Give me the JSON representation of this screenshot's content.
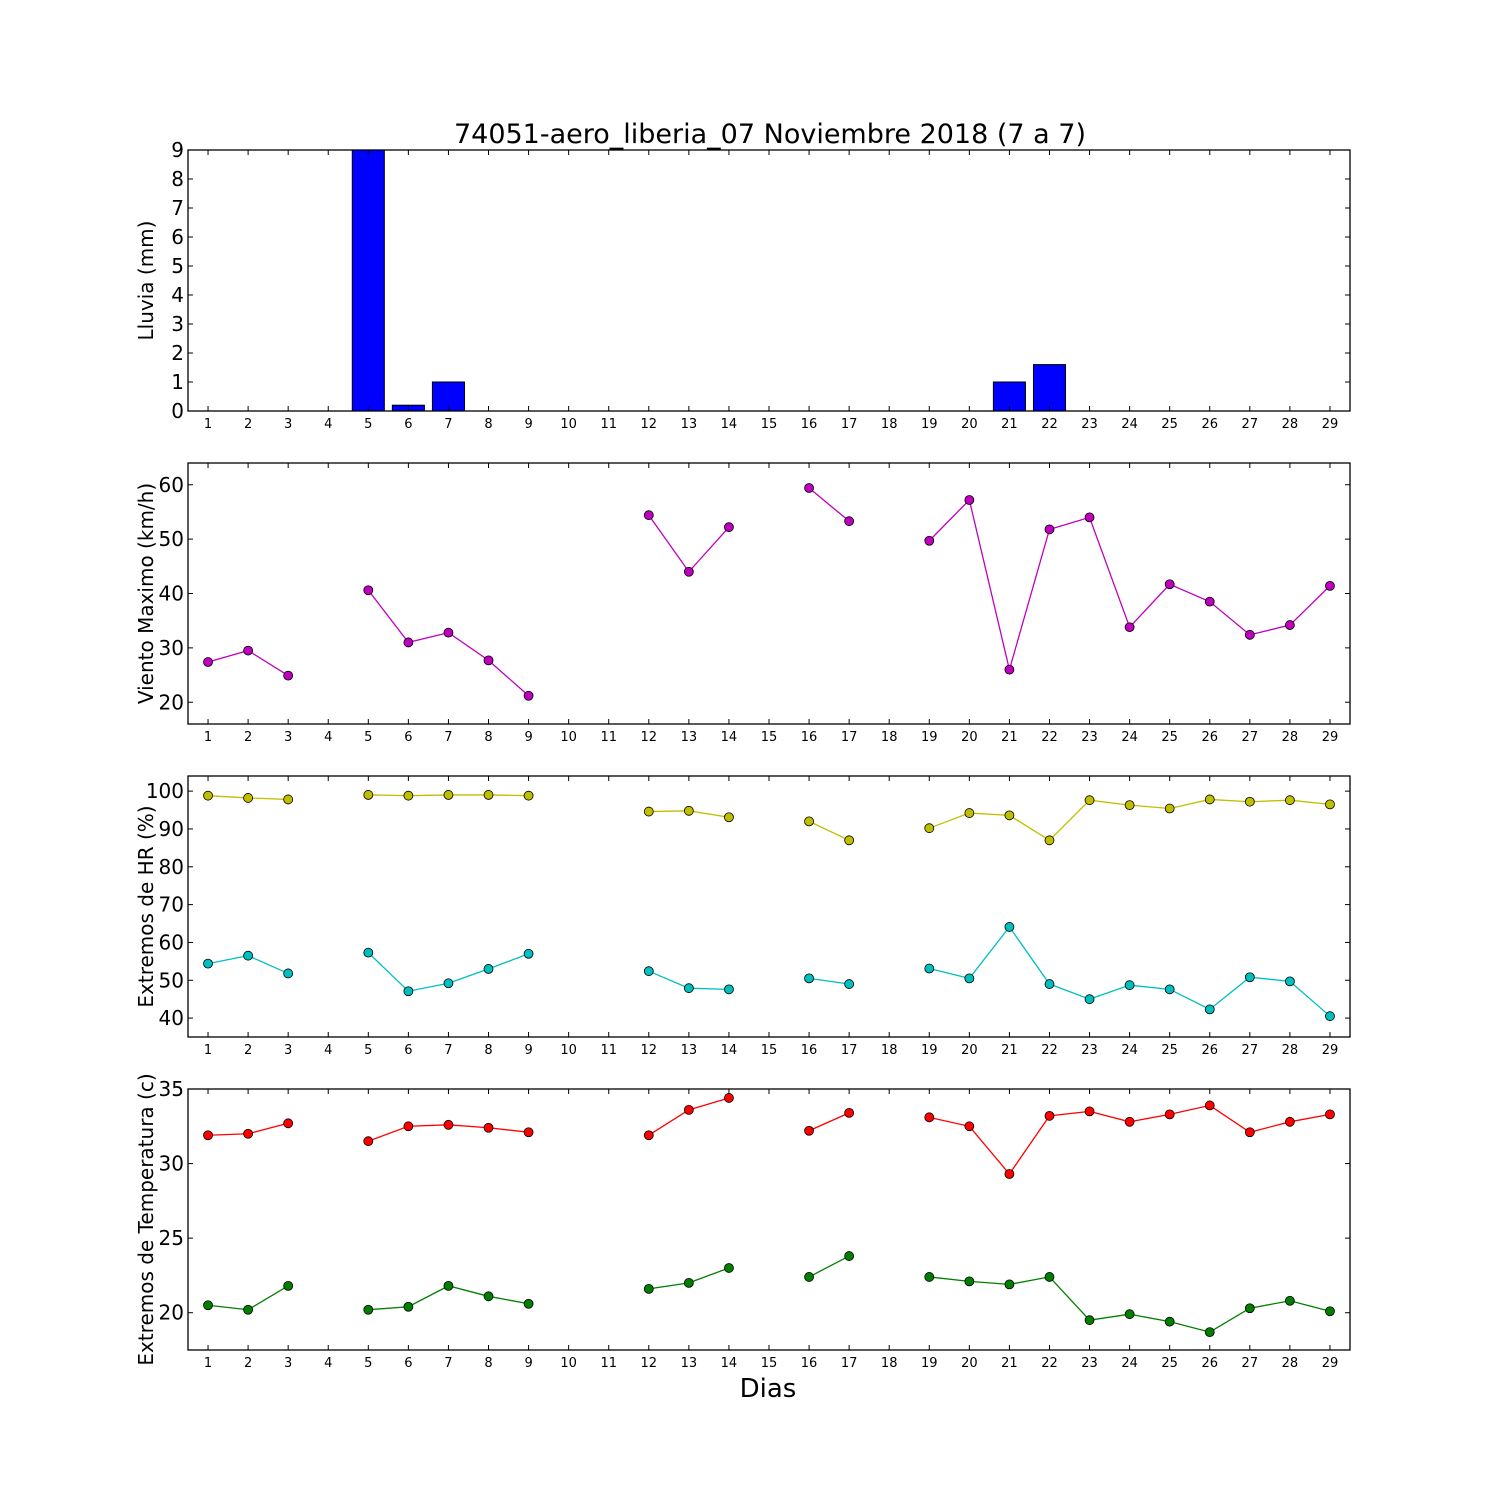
{
  "title": "74051-aero_liberia_07 Noviembre 2018  (7 a 7)",
  "xlabel": "Dias",
  "chart_data": [
    {
      "type": "bar",
      "ylabel": "Lluvia (mm)",
      "x": [
        1,
        2,
        3,
        4,
        5,
        6,
        7,
        8,
        9,
        10,
        11,
        12,
        13,
        14,
        15,
        16,
        17,
        18,
        19,
        20,
        21,
        22,
        23,
        24,
        25,
        26,
        27,
        28,
        29
      ],
      "ylim": [
        0,
        9
      ],
      "yticks": [
        0,
        1,
        2,
        3,
        4,
        5,
        6,
        7,
        8,
        9
      ],
      "series": [
        {
          "color": "#0000ff",
          "values": [
            0,
            0,
            0,
            0,
            9.0,
            0.2,
            1.0,
            0,
            0,
            0,
            0,
            0,
            0,
            0,
            0,
            0,
            0,
            0,
            0,
            0,
            1.0,
            1.6,
            0,
            0,
            0,
            0,
            0,
            0,
            0
          ]
        }
      ]
    },
    {
      "type": "line",
      "ylabel": "Viento Maximo (km/h)",
      "x": [
        1,
        2,
        3,
        4,
        5,
        6,
        7,
        8,
        9,
        10,
        11,
        12,
        13,
        14,
        15,
        16,
        17,
        18,
        19,
        20,
        21,
        22,
        23,
        24,
        25,
        26,
        27,
        28,
        29
      ],
      "ylim": [
        16,
        64
      ],
      "yticks": [
        20,
        30,
        40,
        50,
        60
      ],
      "series": [
        {
          "color": "#bf00bf",
          "values": [
            27.4,
            29.5,
            24.9,
            null,
            40.6,
            31.0,
            32.8,
            27.7,
            21.2,
            null,
            null,
            54.4,
            44.0,
            52.2,
            null,
            59.4,
            53.3,
            null,
            49.7,
            57.2,
            26.0,
            51.8,
            54.0,
            33.8,
            41.7,
            38.5,
            32.4,
            34.2,
            41.4
          ]
        }
      ]
    },
    {
      "type": "line",
      "ylabel": "Extremos de HR (%)",
      "x": [
        1,
        2,
        3,
        4,
        5,
        6,
        7,
        8,
        9,
        10,
        11,
        12,
        13,
        14,
        15,
        16,
        17,
        18,
        19,
        20,
        21,
        22,
        23,
        24,
        25,
        26,
        27,
        28,
        29
      ],
      "ylim": [
        35,
        104
      ],
      "yticks": [
        40,
        50,
        60,
        70,
        80,
        90,
        100
      ],
      "series": [
        {
          "color": "#bfbf00",
          "values": [
            98.8,
            98.2,
            97.8,
            null,
            99.0,
            98.8,
            99.0,
            99.0,
            98.8,
            null,
            null,
            94.6,
            94.8,
            93.1,
            null,
            92.0,
            87.0,
            null,
            90.2,
            94.2,
            93.6,
            87.0,
            97.6,
            96.3,
            95.4,
            97.8,
            97.2,
            97.6,
            96.5
          ]
        },
        {
          "color": "#00bfbf",
          "values": [
            54.4,
            56.5,
            51.8,
            null,
            57.3,
            47.1,
            49.2,
            53.0,
            57.0,
            null,
            null,
            52.4,
            47.9,
            47.6,
            null,
            50.5,
            49.0,
            null,
            53.1,
            50.5,
            64.1,
            49.0,
            45.0,
            48.7,
            47.6,
            42.3,
            50.8,
            49.7,
            40.5
          ]
        }
      ]
    },
    {
      "type": "line",
      "ylabel": "Extremos de Temperatura (c)",
      "x": [
        1,
        2,
        3,
        4,
        5,
        6,
        7,
        8,
        9,
        10,
        11,
        12,
        13,
        14,
        15,
        16,
        17,
        18,
        19,
        20,
        21,
        22,
        23,
        24,
        25,
        26,
        27,
        28,
        29
      ],
      "ylim": [
        17.5,
        35
      ],
      "yticks": [
        20,
        25,
        30,
        35
      ],
      "series": [
        {
          "color": "#ff0000",
          "values": [
            31.9,
            32.0,
            32.7,
            null,
            31.5,
            32.5,
            32.6,
            32.4,
            32.1,
            null,
            null,
            31.9,
            33.6,
            34.4,
            null,
            32.2,
            33.4,
            null,
            33.1,
            32.5,
            29.3,
            33.2,
            33.5,
            32.8,
            33.3,
            33.9,
            32.1,
            32.8,
            33.3
          ]
        },
        {
          "color": "#007f00",
          "values": [
            20.5,
            20.2,
            21.8,
            null,
            20.2,
            20.4,
            21.8,
            21.1,
            20.6,
            null,
            null,
            21.6,
            22.0,
            23.0,
            null,
            22.4,
            23.8,
            null,
            22.4,
            22.1,
            21.9,
            22.4,
            19.5,
            19.9,
            19.4,
            18.7,
            20.3,
            20.8,
            20.1
          ]
        }
      ]
    }
  ]
}
